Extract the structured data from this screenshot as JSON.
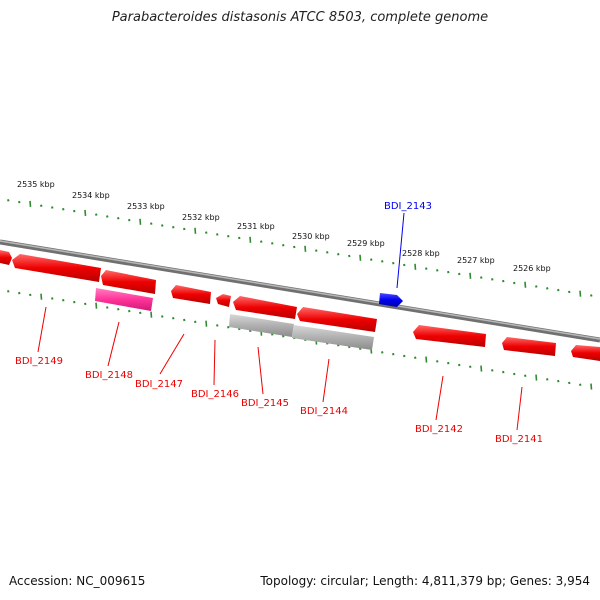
{
  "title": "Parabacteroides distasonis ATCC 8503, complete genome",
  "footer": {
    "accession": "Accession: NC_009615",
    "summary": "Topology: circular; Length: 4,811,379 bp; Genes: 3,954"
  },
  "colors": {
    "backbone": "#808080",
    "tick": "#2e8b2e",
    "forward_gene": "#0000ee",
    "reverse_gene": "#ee0000",
    "pseudo_gene": "#ff3399",
    "rna_gene": "#aaaaaa"
  },
  "scale_labels": [
    "2535 kbp",
    "2534 kbp",
    "2533 kbp",
    "2532 kbp",
    "2531 kbp",
    "2530 kbp",
    "2529 kbp",
    "2528 kbp",
    "2527 kbp",
    "2526 kbp"
  ],
  "genes": [
    {
      "id": "BDI_2149",
      "strand": "reverse",
      "type": "cds"
    },
    {
      "id": "BDI_2148",
      "strand": "reverse",
      "type": "pseudo"
    },
    {
      "id": "BDI_2147",
      "strand": "reverse",
      "type": "cds"
    },
    {
      "id": "BDI_2146",
      "strand": "reverse",
      "type": "cds"
    },
    {
      "id": "BDI_2145",
      "strand": "reverse",
      "type": "rna"
    },
    {
      "id": "BDI_2144",
      "strand": "reverse",
      "type": "rna"
    },
    {
      "id": "BDI_2143",
      "strand": "forward",
      "type": "cds"
    },
    {
      "id": "BDI_2142",
      "strand": "reverse",
      "type": "cds"
    },
    {
      "id": "BDI_2141",
      "strand": "reverse",
      "type": "cds"
    }
  ]
}
